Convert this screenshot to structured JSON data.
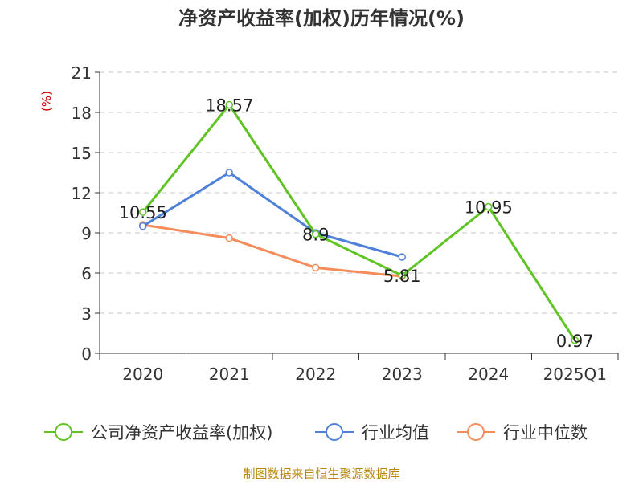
{
  "chart_data": {
    "type": "line",
    "title": "净资产收益率(加权)历年情况(%)",
    "ylabel": "(%)",
    "categories": [
      "2020",
      "2021",
      "2022",
      "2023",
      "2024",
      "2025Q1"
    ],
    "ylim": [
      0,
      21
    ],
    "yticks": [
      0,
      3,
      6,
      9,
      12,
      15,
      18,
      21
    ],
    "grid": true,
    "legend_position": "bottom",
    "series": [
      {
        "name": "公司净资产收益率(加权)",
        "color": "#5fc423",
        "values": [
          10.55,
          18.57,
          8.9,
          5.81,
          10.95,
          0.97
        ],
        "labels": [
          "10.55",
          "18.57",
          "8.9",
          "5.81",
          "10.95",
          "0.97"
        ]
      },
      {
        "name": "行业均值",
        "color": "#4f81d9",
        "values": [
          9.5,
          13.5,
          9.0,
          7.2,
          null,
          null
        ]
      },
      {
        "name": "行业中位数",
        "color": "#f58c5b",
        "values": [
          9.6,
          8.6,
          6.4,
          5.75,
          null,
          null
        ]
      }
    ]
  },
  "source": "制图数据来自恒生聚源数据库"
}
